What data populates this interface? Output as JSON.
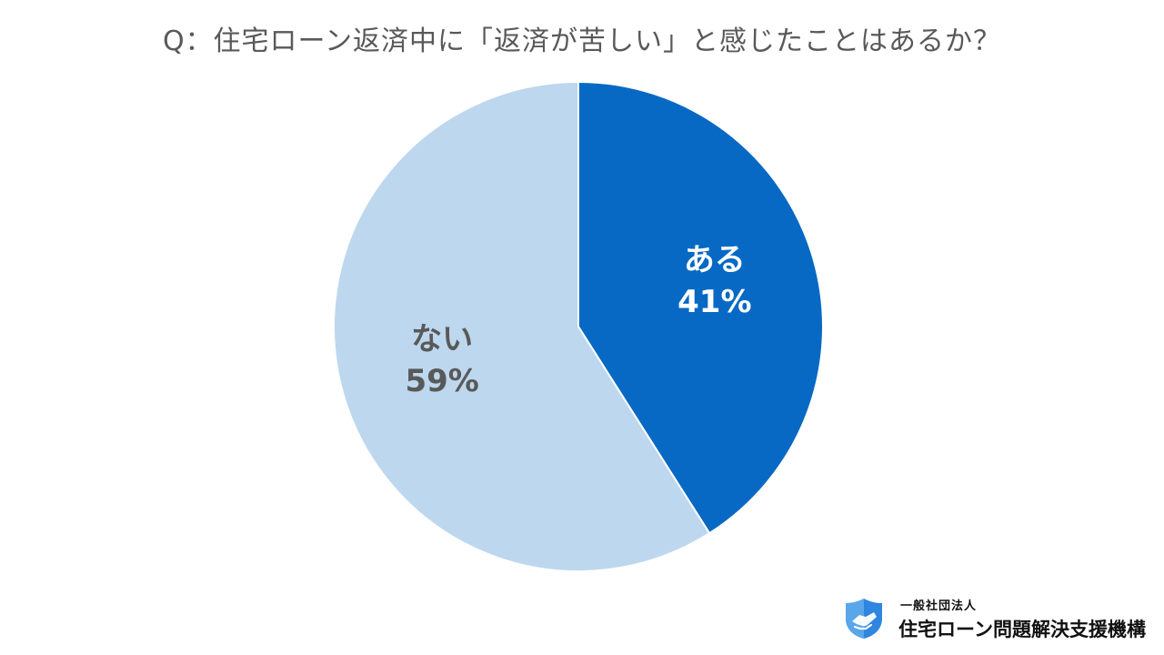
{
  "chart_data": {
    "type": "pie",
    "title": "Q：住宅ローン返済中に「返済が苦しい」と感じたことはあるか？",
    "slices": [
      {
        "label": "ある",
        "value": 41,
        "value_label": "41%",
        "color": "#0769C4",
        "text_color": "#FFFFFF"
      },
      {
        "label": "ない",
        "value": 59,
        "value_label": "59%",
        "color": "#BDD7EE",
        "text_color": "#595959"
      }
    ],
    "start_angle": "top",
    "direction": "clockwise",
    "legend": "none"
  },
  "footer": {
    "org_type": "一般社団法人",
    "org_name": "住宅ローン問題解決支援機構",
    "logo_icon": "handshake-shield-icon"
  },
  "colors": {
    "title": "#595959",
    "logo_dark": "#2E86DE",
    "logo_light": "#9FCBF3"
  }
}
